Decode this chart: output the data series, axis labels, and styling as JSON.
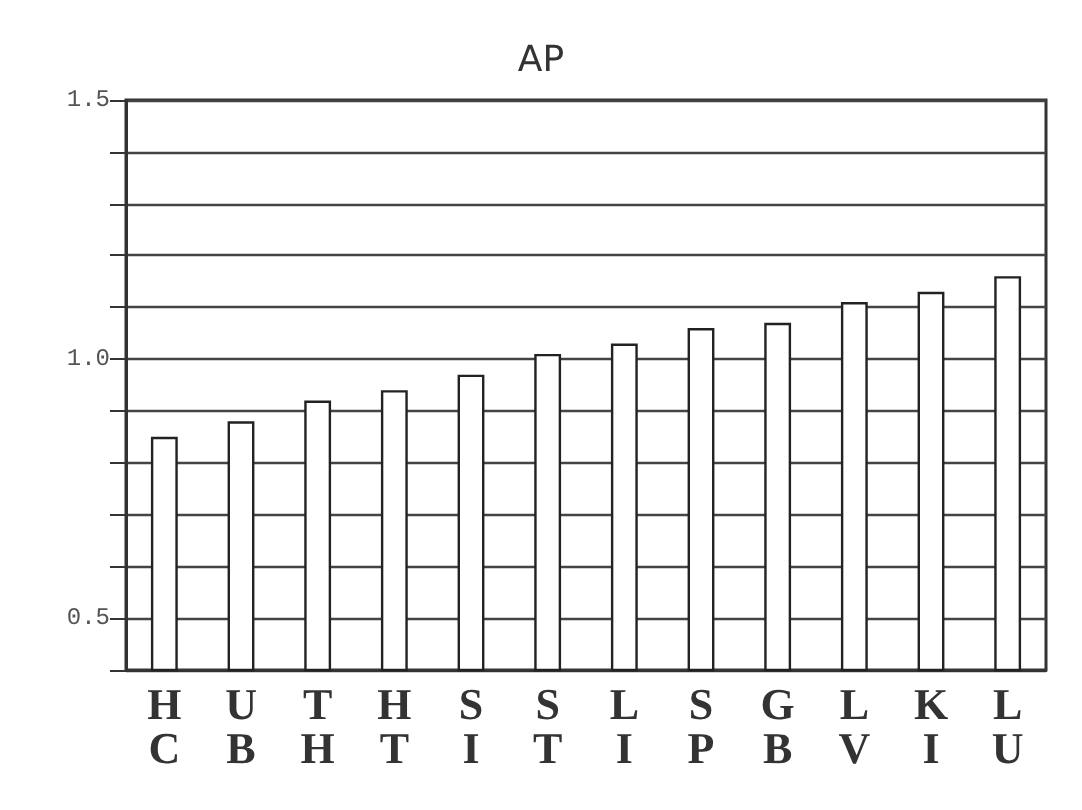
{
  "chart_data": {
    "type": "bar",
    "title": "AP",
    "categories": [
      "H\nC",
      "U\nB",
      "T\nH",
      "H\nT",
      "S\nI",
      "S\nT",
      "L\nI",
      "S\nP",
      "G\nB",
      "L\nV",
      "K\nI",
      "L\nU"
    ],
    "values": [
      0.85,
      0.88,
      0.92,
      0.94,
      0.97,
      1.01,
      1.03,
      1.06,
      1.07,
      1.11,
      1.13,
      1.16
    ],
    "color": "#ffffff",
    "ylim": [
      0.4,
      1.5
    ],
    "yticks": [
      {
        "value": 0.4,
        "label": null
      },
      0.5,
      {
        "value": 0.6,
        "label": null
      },
      {
        "value": 0.7,
        "label": null
      },
      {
        "value": 0.8,
        "label": null
      },
      {
        "value": 0.9,
        "label": null
      },
      {
        "value": 1.0,
        "label": "1.0"
      },
      {
        "value": 1.1,
        "label": null
      },
      {
        "value": 1.2,
        "label": null
      },
      {
        "value": 1.3,
        "label": null
      },
      {
        "value": 1.4,
        "label": null
      },
      1.5
    ],
    "grid": true
  }
}
